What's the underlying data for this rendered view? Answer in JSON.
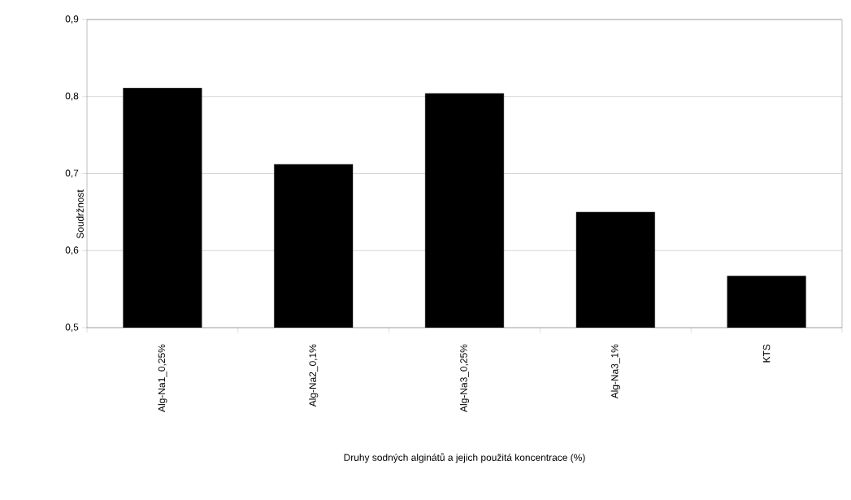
{
  "chart_data": {
    "type": "bar",
    "xlabel": "Druhy  sodných alginátů a jejich použitá koncentrace (%)",
    "ylabel": "Soudržnost",
    "categories": [
      "Alg-Na1_0,25%",
      "Alg-Na2_0,1%",
      "Alg-Na3_0,25%",
      "Alg-Na3_1%",
      "KTS"
    ],
    "values": [
      0.811,
      0.712,
      0.804,
      0.65,
      0.567
    ],
    "color": "#000000",
    "ylim": [
      0.5,
      0.9
    ],
    "yticks": [
      {
        "value": 0.5,
        "label": "0,5"
      },
      {
        "value": 0.6,
        "label": "0,6"
      },
      {
        "value": 0.7,
        "label": "0,7"
      },
      {
        "value": 0.8,
        "label": "0,8"
      },
      {
        "value": 0.9,
        "label": "0,9"
      }
    ],
    "grid": "y"
  }
}
